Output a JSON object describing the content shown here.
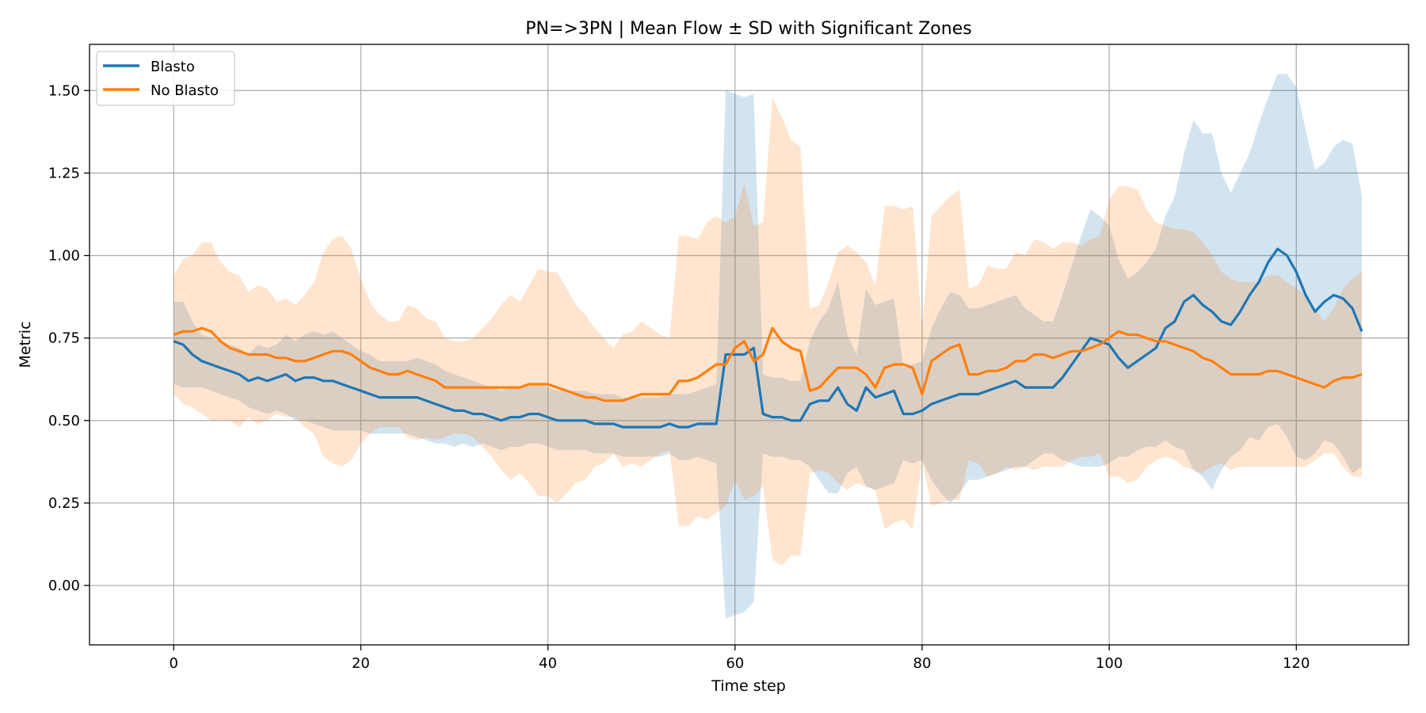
{
  "chart_data": {
    "type": "line",
    "title": "PN=>3PN | Mean Flow ± SD with Significant Zones",
    "xlabel": "Time step",
    "ylabel": "Metric",
    "xlim": [
      -9,
      132
    ],
    "ylim": [
      -0.18,
      1.64
    ],
    "xticks": [
      0,
      20,
      40,
      60,
      80,
      100,
      120
    ],
    "xtick_labels": [
      "0",
      "20",
      "40",
      "60",
      "80",
      "100",
      "120"
    ],
    "yticks": [
      0.0,
      0.25,
      0.5,
      0.75,
      1.0,
      1.25,
      1.5
    ],
    "ytick_labels": [
      "0.00",
      "0.25",
      "0.50",
      "0.75",
      "1.00",
      "1.25",
      "1.50"
    ],
    "grid": true,
    "legend_position": "top-left",
    "series": [
      {
        "name": "Blasto",
        "color": "#1f77b4",
        "band_opacity": 0.2,
        "mean": [
          0.74,
          0.73,
          0.7,
          0.68,
          0.67,
          0.66,
          0.65,
          0.64,
          0.62,
          0.63,
          0.62,
          0.63,
          0.64,
          0.62,
          0.63,
          0.63,
          0.62,
          0.62,
          0.61,
          0.6,
          0.59,
          0.58,
          0.57,
          0.57,
          0.57,
          0.57,
          0.57,
          0.56,
          0.55,
          0.54,
          0.53,
          0.53,
          0.52,
          0.52,
          0.51,
          0.5,
          0.51,
          0.51,
          0.52,
          0.52,
          0.51,
          0.5,
          0.5,
          0.5,
          0.5,
          0.49,
          0.49,
          0.49,
          0.48,
          0.48,
          0.48,
          0.48,
          0.48,
          0.49,
          0.48,
          0.48,
          0.49,
          0.49,
          0.49,
          0.7,
          0.7,
          0.7,
          0.72,
          0.52,
          0.51,
          0.51,
          0.5,
          0.5,
          0.55,
          0.56,
          0.56,
          0.6,
          0.55,
          0.53,
          0.6,
          0.57,
          0.58,
          0.59,
          0.52,
          0.52,
          0.53,
          0.55,
          0.56,
          0.57,
          0.58,
          0.58,
          0.58,
          0.59,
          0.6,
          0.61,
          0.62,
          0.6,
          0.6,
          0.6,
          0.6,
          0.63,
          0.67,
          0.71,
          0.75,
          0.74,
          0.73,
          0.69,
          0.66,
          0.68,
          0.7,
          0.72,
          0.78,
          0.8,
          0.86,
          0.88,
          0.85,
          0.83,
          0.8,
          0.79,
          0.83,
          0.88,
          0.92,
          0.98,
          1.02,
          1.0,
          0.95,
          0.88,
          0.83,
          0.86,
          0.88,
          0.87,
          0.84,
          0.77
        ],
        "upper": [
          0.86,
          0.86,
          0.8,
          0.76,
          0.75,
          0.74,
          0.73,
          0.72,
          0.7,
          0.73,
          0.72,
          0.73,
          0.76,
          0.74,
          0.76,
          0.77,
          0.76,
          0.77,
          0.75,
          0.73,
          0.71,
          0.7,
          0.68,
          0.68,
          0.68,
          0.68,
          0.69,
          0.68,
          0.67,
          0.65,
          0.64,
          0.63,
          0.62,
          0.61,
          0.6,
          0.59,
          0.6,
          0.6,
          0.61,
          0.61,
          0.6,
          0.59,
          0.59,
          0.59,
          0.59,
          0.58,
          0.58,
          0.58,
          0.57,
          0.57,
          0.57,
          0.57,
          0.57,
          0.58,
          0.58,
          0.58,
          0.59,
          0.6,
          0.61,
          1.5,
          1.49,
          1.48,
          1.49,
          0.64,
          0.63,
          0.63,
          0.62,
          0.62,
          0.74,
          0.8,
          0.84,
          0.92,
          0.76,
          0.7,
          0.9,
          0.85,
          0.86,
          0.87,
          0.66,
          0.67,
          0.68,
          0.78,
          0.84,
          0.89,
          0.88,
          0.84,
          0.84,
          0.85,
          0.86,
          0.87,
          0.88,
          0.84,
          0.82,
          0.8,
          0.8,
          0.88,
          0.97,
          1.06,
          1.14,
          1.12,
          1.09,
          0.99,
          0.93,
          0.95,
          0.98,
          1.02,
          1.12,
          1.18,
          1.31,
          1.41,
          1.37,
          1.37,
          1.25,
          1.19,
          1.25,
          1.31,
          1.4,
          1.48,
          1.55,
          1.55,
          1.51,
          1.38,
          1.26,
          1.28,
          1.33,
          1.35,
          1.34,
          1.18
        ],
        "lower": [
          0.61,
          0.6,
          0.6,
          0.6,
          0.59,
          0.58,
          0.57,
          0.56,
          0.54,
          0.53,
          0.52,
          0.53,
          0.52,
          0.5,
          0.5,
          0.49,
          0.48,
          0.47,
          0.47,
          0.47,
          0.47,
          0.46,
          0.46,
          0.46,
          0.46,
          0.46,
          0.45,
          0.44,
          0.43,
          0.43,
          0.42,
          0.43,
          0.42,
          0.43,
          0.42,
          0.41,
          0.42,
          0.42,
          0.43,
          0.43,
          0.42,
          0.41,
          0.41,
          0.41,
          0.41,
          0.4,
          0.4,
          0.4,
          0.39,
          0.39,
          0.39,
          0.39,
          0.39,
          0.4,
          0.38,
          0.38,
          0.39,
          0.38,
          0.37,
          -0.1,
          -0.09,
          -0.08,
          -0.05,
          0.4,
          0.39,
          0.39,
          0.38,
          0.38,
          0.36,
          0.32,
          0.28,
          0.28,
          0.34,
          0.36,
          0.3,
          0.29,
          0.3,
          0.31,
          0.38,
          0.37,
          0.38,
          0.32,
          0.28,
          0.25,
          0.28,
          0.32,
          0.32,
          0.33,
          0.34,
          0.35,
          0.36,
          0.36,
          0.38,
          0.4,
          0.4,
          0.38,
          0.37,
          0.36,
          0.36,
          0.36,
          0.37,
          0.39,
          0.39,
          0.41,
          0.42,
          0.42,
          0.44,
          0.42,
          0.41,
          0.35,
          0.33,
          0.29,
          0.35,
          0.39,
          0.41,
          0.45,
          0.44,
          0.48,
          0.49,
          0.45,
          0.39,
          0.38,
          0.4,
          0.44,
          0.43,
          0.39,
          0.34,
          0.36
        ]
      },
      {
        "name": "No Blasto",
        "color": "#ff7f0e",
        "band_opacity": 0.2,
        "mean": [
          0.76,
          0.77,
          0.77,
          0.78,
          0.77,
          0.74,
          0.72,
          0.71,
          0.7,
          0.7,
          0.7,
          0.69,
          0.69,
          0.68,
          0.68,
          0.69,
          0.7,
          0.71,
          0.71,
          0.7,
          0.68,
          0.66,
          0.65,
          0.64,
          0.64,
          0.65,
          0.64,
          0.63,
          0.62,
          0.6,
          0.6,
          0.6,
          0.6,
          0.6,
          0.6,
          0.6,
          0.6,
          0.6,
          0.61,
          0.61,
          0.61,
          0.6,
          0.59,
          0.58,
          0.57,
          0.57,
          0.56,
          0.56,
          0.56,
          0.57,
          0.58,
          0.58,
          0.58,
          0.58,
          0.62,
          0.62,
          0.63,
          0.65,
          0.67,
          0.67,
          0.72,
          0.74,
          0.68,
          0.7,
          0.78,
          0.74,
          0.72,
          0.71,
          0.59,
          0.6,
          0.63,
          0.66,
          0.66,
          0.66,
          0.64,
          0.6,
          0.66,
          0.67,
          0.67,
          0.66,
          0.58,
          0.68,
          0.7,
          0.72,
          0.73,
          0.64,
          0.64,
          0.65,
          0.65,
          0.66,
          0.68,
          0.68,
          0.7,
          0.7,
          0.69,
          0.7,
          0.71,
          0.71,
          0.72,
          0.73,
          0.75,
          0.77,
          0.76,
          0.76,
          0.75,
          0.74,
          0.74,
          0.73,
          0.72,
          0.71,
          0.69,
          0.68,
          0.66,
          0.64,
          0.64,
          0.64,
          0.64,
          0.65,
          0.65,
          0.64,
          0.63,
          0.62,
          0.61,
          0.6,
          0.62,
          0.63,
          0.63,
          0.64
        ],
        "upper": [
          0.94,
          0.99,
          1.0,
          1.04,
          1.04,
          0.98,
          0.95,
          0.94,
          0.89,
          0.91,
          0.9,
          0.86,
          0.87,
          0.85,
          0.88,
          0.92,
          1.01,
          1.05,
          1.06,
          1.02,
          0.93,
          0.86,
          0.82,
          0.8,
          0.8,
          0.85,
          0.84,
          0.81,
          0.8,
          0.75,
          0.74,
          0.74,
          0.75,
          0.78,
          0.81,
          0.85,
          0.88,
          0.86,
          0.91,
          0.96,
          0.95,
          0.95,
          0.9,
          0.85,
          0.82,
          0.78,
          0.75,
          0.72,
          0.76,
          0.77,
          0.8,
          0.78,
          0.76,
          0.75,
          1.06,
          1.06,
          1.05,
          1.1,
          1.12,
          1.1,
          1.12,
          1.22,
          1.09,
          1.1,
          1.48,
          1.42,
          1.35,
          1.33,
          0.84,
          0.85,
          0.92,
          1.01,
          1.03,
          1.01,
          0.98,
          0.91,
          1.15,
          1.15,
          1.14,
          1.15,
          0.78,
          1.12,
          1.15,
          1.18,
          1.2,
          0.9,
          0.91,
          0.97,
          0.96,
          0.96,
          1.01,
          1.0,
          1.05,
          1.04,
          1.02,
          1.04,
          1.04,
          1.03,
          1.05,
          1.06,
          1.17,
          1.21,
          1.21,
          1.2,
          1.14,
          1.1,
          1.09,
          1.08,
          1.08,
          1.07,
          1.04,
          1.0,
          0.95,
          0.93,
          0.92,
          0.92,
          0.92,
          0.94,
          0.94,
          0.92,
          0.9,
          0.88,
          0.84,
          0.8,
          0.84,
          0.9,
          0.93,
          0.95
        ],
        "lower": [
          0.58,
          0.55,
          0.54,
          0.52,
          0.5,
          0.5,
          0.5,
          0.48,
          0.51,
          0.49,
          0.5,
          0.52,
          0.51,
          0.51,
          0.48,
          0.46,
          0.39,
          0.37,
          0.36,
          0.38,
          0.43,
          0.46,
          0.48,
          0.48,
          0.48,
          0.45,
          0.44,
          0.45,
          0.44,
          0.45,
          0.46,
          0.46,
          0.45,
          0.42,
          0.39,
          0.35,
          0.32,
          0.34,
          0.31,
          0.27,
          0.27,
          0.25,
          0.28,
          0.31,
          0.32,
          0.36,
          0.37,
          0.4,
          0.36,
          0.37,
          0.36,
          0.38,
          0.4,
          0.41,
          0.18,
          0.18,
          0.21,
          0.2,
          0.22,
          0.24,
          0.32,
          0.26,
          0.27,
          0.3,
          0.08,
          0.06,
          0.09,
          0.09,
          0.34,
          0.35,
          0.34,
          0.31,
          0.29,
          0.31,
          0.3,
          0.29,
          0.17,
          0.19,
          0.2,
          0.17,
          0.38,
          0.24,
          0.25,
          0.26,
          0.26,
          0.38,
          0.37,
          0.33,
          0.34,
          0.36,
          0.35,
          0.36,
          0.35,
          0.36,
          0.36,
          0.36,
          0.38,
          0.39,
          0.39,
          0.4,
          0.33,
          0.33,
          0.31,
          0.32,
          0.36,
          0.38,
          0.39,
          0.38,
          0.36,
          0.35,
          0.34,
          0.36,
          0.37,
          0.35,
          0.36,
          0.36,
          0.36,
          0.36,
          0.36,
          0.36,
          0.36,
          0.36,
          0.38,
          0.4,
          0.4,
          0.36,
          0.33,
          0.33
        ]
      }
    ]
  }
}
